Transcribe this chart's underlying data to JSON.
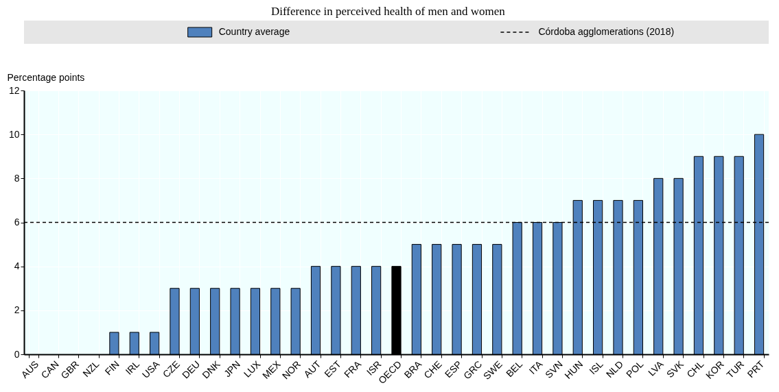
{
  "chart_data": {
    "type": "bar",
    "title": "Difference in perceived health of men and women",
    "ylabel": "Percentage points",
    "categories": [
      "AUS",
      "CAN",
      "GBR",
      "NZL",
      "FIN",
      "IRL",
      "USA",
      "CZE",
      "DEU",
      "DNK",
      "JPN",
      "LUX",
      "MEX",
      "NOR",
      "AUT",
      "EST",
      "FRA",
      "ISR",
      "OECD",
      "BRA",
      "CHE",
      "ESP",
      "GRC",
      "SWE",
      "BEL",
      "ITA",
      "SVN",
      "HUN",
      "ISL",
      "NLD",
      "POL",
      "LVA",
      "SVK",
      "CHL",
      "KOR",
      "TUR",
      "PRT"
    ],
    "series": [
      {
        "name": "Country average",
        "color": "#4f81bd",
        "values": [
          0,
          0,
          0,
          0,
          1,
          1,
          1,
          3,
          3,
          3,
          3,
          3,
          3,
          3,
          4,
          4,
          4,
          4,
          4,
          5,
          5,
          5,
          5,
          5,
          6,
          6,
          6,
          7,
          7,
          7,
          7,
          8,
          8,
          9,
          9,
          9,
          10
        ],
        "colors": [
          "#4f81bd",
          "#4f81bd",
          "#4f81bd",
          "#4f81bd",
          "#4f81bd",
          "#4f81bd",
          "#4f81bd",
          "#4f81bd",
          "#4f81bd",
          "#4f81bd",
          "#4f81bd",
          "#4f81bd",
          "#4f81bd",
          "#4f81bd",
          "#4f81bd",
          "#4f81bd",
          "#4f81bd",
          "#4f81bd",
          "#000000",
          "#4f81bd",
          "#4f81bd",
          "#4f81bd",
          "#4f81bd",
          "#4f81bd",
          "#4f81bd",
          "#4f81bd",
          "#4f81bd",
          "#4f81bd",
          "#4f81bd",
          "#4f81bd",
          "#4f81bd",
          "#4f81bd",
          "#4f81bd",
          "#4f81bd",
          "#4f81bd",
          "#4f81bd",
          "#4f81bd"
        ]
      }
    ],
    "ylim": [
      0,
      12
    ],
    "yticks": [
      0,
      2,
      4,
      6,
      8,
      10,
      12
    ],
    "grid": true,
    "legend": "top",
    "ref_lines": [
      {
        "axis": "y",
        "value": 6,
        "label": "Córdoba agglomerations (2018)",
        "line_style": "dashed",
        "color": "#000000"
      }
    ]
  }
}
